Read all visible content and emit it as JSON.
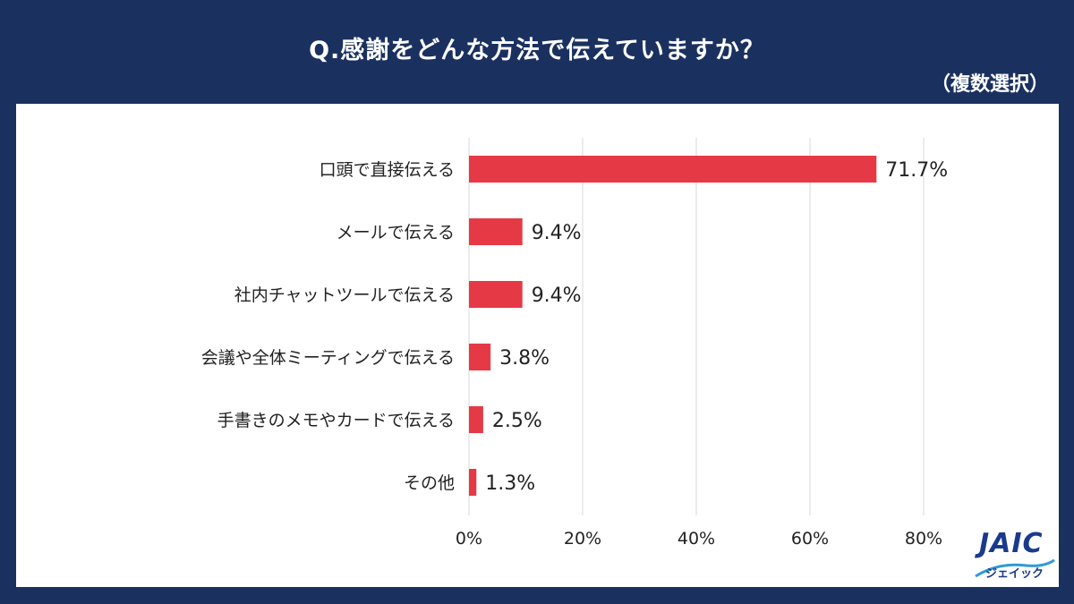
{
  "title": "Q.感謝をどんな方法で伝えていますか？",
  "subtitle": "（複数選択）",
  "logo": {
    "text": "JAIC",
    "sub": "ジェイック"
  },
  "colors": {
    "background": "#1a3160",
    "bar": "#e63946",
    "grid": "#d9d9d9",
    "text": "#222222"
  },
  "chart_data": {
    "type": "bar",
    "orientation": "horizontal",
    "categories": [
      "口頭で直接伝える",
      "メールで伝える",
      "社内チャットツールで伝える",
      "会議や全体ミーティングで伝える",
      "手書きのメモやカードで伝える",
      "その他"
    ],
    "values": [
      71.7,
      9.4,
      9.4,
      3.8,
      2.5,
      1.3
    ],
    "value_labels": [
      "71.7%",
      "9.4%",
      "9.4%",
      "3.8%",
      "2.5%",
      "1.3%"
    ],
    "xlim": [
      0,
      80
    ],
    "xticks": [
      0,
      20,
      40,
      60,
      80
    ],
    "xtick_labels": [
      "0%",
      "20%",
      "40%",
      "60%",
      "80%"
    ],
    "grid": true,
    "legend": "none"
  }
}
